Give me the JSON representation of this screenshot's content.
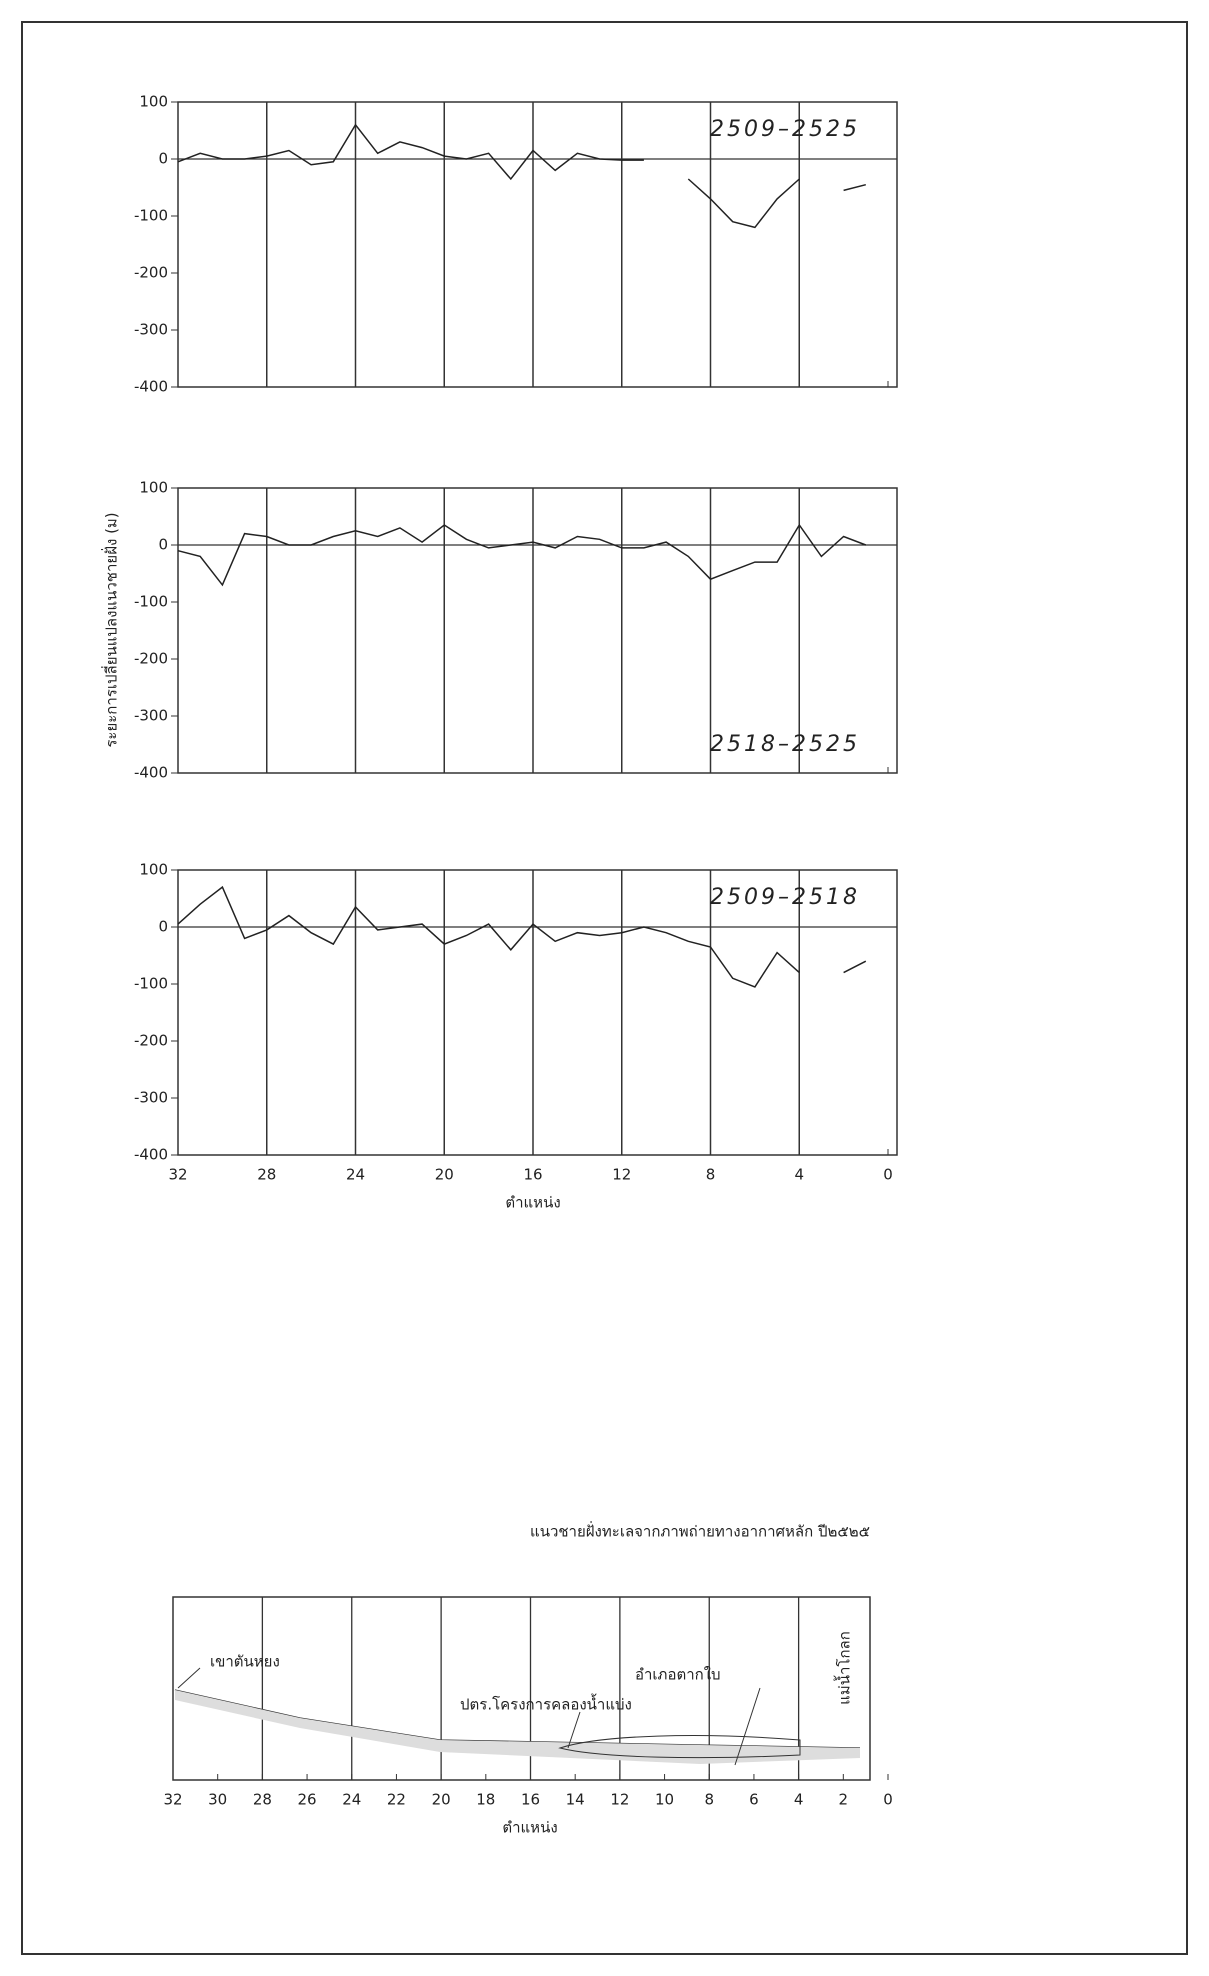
{
  "ylabel": "ระยะการเปลี่ยนแปลงแนวชายฝั่ง (ม)",
  "chart_data": [
    {
      "type": "line",
      "label": "2509–2525",
      "color": "#222",
      "x": [
        32,
        31,
        30,
        29,
        28,
        27,
        26,
        25,
        24,
        23,
        22,
        21,
        20,
        19,
        18,
        17,
        16,
        15,
        14,
        13,
        12,
        11,
        10,
        9,
        8,
        7,
        6,
        5,
        4,
        3,
        2,
        1
      ],
      "values": [
        -5,
        10,
        0,
        0,
        5,
        15,
        -10,
        -5,
        60,
        10,
        30,
        20,
        5,
        0,
        10,
        -35,
        15,
        -20,
        10,
        0,
        -2,
        -2,
        null,
        -35,
        -70,
        -110,
        -120,
        -70,
        -35,
        null,
        -55,
        -45
      ],
      "xlim": [
        32,
        0
      ],
      "xticks": [
        32,
        28,
        24,
        20,
        16,
        12,
        8,
        4,
        0
      ],
      "ylim": [
        -400,
        100
      ],
      "yticks": [
        -400,
        -300,
        -200,
        -100,
        0,
        100
      ],
      "grid": true,
      "xtick_labels": false
    },
    {
      "type": "line",
      "label": "2518–2525",
      "color": "#222",
      "x": [
        32,
        31,
        30,
        29,
        28,
        27,
        26,
        25,
        24,
        23,
        22,
        21,
        20,
        19,
        18,
        17,
        16,
        15,
        14,
        13,
        12,
        11,
        10,
        9,
        8,
        7,
        6,
        5,
        4,
        3,
        2,
        1
      ],
      "values": [
        -10,
        -20,
        -70,
        20,
        15,
        0,
        0,
        15,
        25,
        15,
        30,
        5,
        35,
        10,
        -5,
        0,
        5,
        -5,
        15,
        10,
        -5,
        -5,
        5,
        -20,
        -60,
        -45,
        -30,
        -30,
        35,
        -20,
        15,
        0
      ],
      "xlim": [
        32,
        0
      ],
      "xticks": [
        32,
        28,
        24,
        20,
        16,
        12,
        8,
        4,
        0
      ],
      "ylim": [
        -400,
        100
      ],
      "yticks": [
        -400,
        -300,
        -200,
        -100,
        0,
        100
      ],
      "grid": true,
      "xtick_labels": false
    },
    {
      "type": "line",
      "label": "2509–2518",
      "color": "#222",
      "x": [
        32,
        31,
        30,
        29,
        28,
        27,
        26,
        25,
        24,
        23,
        22,
        21,
        20,
        19,
        18,
        17,
        16,
        15,
        14,
        13,
        12,
        11,
        10,
        9,
        8,
        7,
        6,
        5,
        4,
        3,
        2,
        1
      ],
      "values": [
        5,
        40,
        70,
        -20,
        -5,
        20,
        -10,
        -30,
        35,
        -5,
        0,
        5,
        -30,
        -15,
        5,
        -40,
        5,
        -25,
        -10,
        -15,
        -10,
        0,
        -10,
        -25,
        -35,
        -90,
        -105,
        -45,
        -80,
        null,
        -80,
        -60
      ],
      "xlim": [
        32,
        0
      ],
      "xticks": [
        32,
        28,
        24,
        20,
        16,
        12,
        8,
        4,
        0
      ],
      "ylim": [
        -400,
        100
      ],
      "yticks": [
        -400,
        -300,
        -200,
        -100,
        0,
        100
      ],
      "grid": true,
      "xtick_labels": true,
      "xlabel": "ตำแหน่ง"
    }
  ],
  "map": {
    "title": "แนวชายฝั่งทะเลจากภาพถ่ายทางอากาศหลัก ปี๒๕๒๕",
    "xlabel": "ตำแหน่ง",
    "xlim": [
      32,
      0
    ],
    "xticks": [
      32,
      30,
      28,
      26,
      24,
      22,
      20,
      18,
      16,
      14,
      12,
      10,
      8,
      6,
      4,
      2,
      0
    ],
    "annotations": [
      "เขาตันหยง",
      "ปตร.โครงการคลองน้ำแบ่ง",
      "อำเภอตากใบ",
      "แม่น้ำโกลก"
    ]
  }
}
